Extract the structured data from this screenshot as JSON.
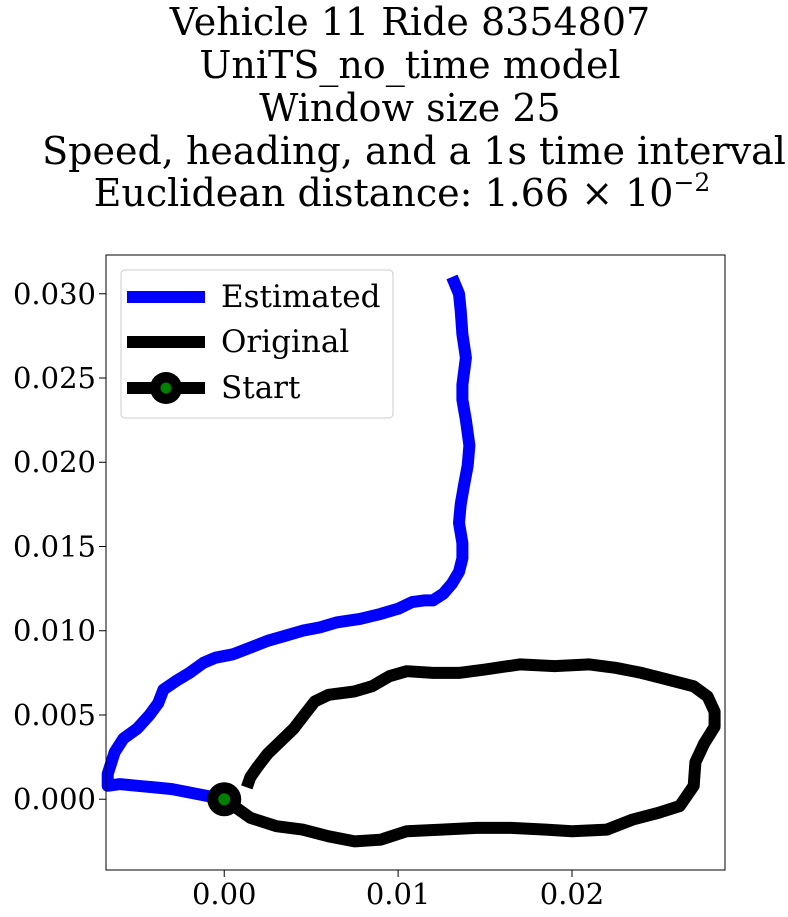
{
  "chart_data": {
    "type": "line",
    "title_lines": [
      "Vehicle 11 Ride 8354807",
      "UniTS_no_time model",
      "Window size 25",
      "Speed, heading, and a 1s time interval",
      "Euclidean distance: 1.66 × 10"
    ],
    "title_exponent": "−2",
    "xlim": [
      -0.0068,
      0.0288
    ],
    "ylim": [
      -0.0042,
      0.0323
    ],
    "xticks": [
      0.0,
      0.01,
      0.02
    ],
    "xtick_labels": [
      "0.00",
      "0.01",
      "0.02"
    ],
    "yticks": [
      0.0,
      0.005,
      0.01,
      0.015,
      0.02,
      0.025,
      0.03
    ],
    "ytick_labels": [
      "0.000",
      "0.005",
      "0.010",
      "0.015",
      "0.020",
      "0.025",
      "0.030"
    ],
    "legend_position": "upper-left",
    "legend": [
      "Estimated",
      "Original",
      "Start"
    ],
    "colors": {
      "estimated": "#0000ff",
      "original": "#000000",
      "start_fill": "#008000",
      "start_edge": "#000000"
    },
    "series": [
      {
        "name": "Estimated",
        "color": "#0000ff",
        "points": [
          [
            0.0,
            0.0
          ],
          [
            -0.001,
            0.0002
          ],
          [
            -0.002,
            0.0004
          ],
          [
            -0.003,
            0.0006
          ],
          [
            -0.004,
            0.0007
          ],
          [
            -0.005,
            0.0008
          ],
          [
            -0.006,
            0.0009
          ],
          [
            -0.0067,
            0.0008
          ],
          [
            -0.0067,
            0.0015
          ],
          [
            -0.0063,
            0.0028
          ],
          [
            -0.0058,
            0.0036
          ],
          [
            -0.005,
            0.0042
          ],
          [
            -0.0043,
            0.005
          ],
          [
            -0.0038,
            0.0057
          ],
          [
            -0.0035,
            0.0065
          ],
          [
            -0.0028,
            0.007
          ],
          [
            -0.002,
            0.0075
          ],
          [
            -0.0012,
            0.0081
          ],
          [
            -0.0005,
            0.0084
          ],
          [
            0.0005,
            0.0086
          ],
          [
            0.0015,
            0.009
          ],
          [
            0.0025,
            0.0094
          ],
          [
            0.0035,
            0.0097
          ],
          [
            0.0045,
            0.01
          ],
          [
            0.0055,
            0.0102
          ],
          [
            0.0065,
            0.0105
          ],
          [
            0.0078,
            0.0107
          ],
          [
            0.009,
            0.011
          ],
          [
            0.01,
            0.0113
          ],
          [
            0.0108,
            0.0117
          ],
          [
            0.0115,
            0.0118
          ],
          [
            0.012,
            0.0118
          ],
          [
            0.0126,
            0.0122
          ],
          [
            0.0131,
            0.0128
          ],
          [
            0.0135,
            0.0135
          ],
          [
            0.0137,
            0.0143
          ],
          [
            0.0137,
            0.0152
          ],
          [
            0.0135,
            0.0164
          ],
          [
            0.0136,
            0.0175
          ],
          [
            0.0138,
            0.0187
          ],
          [
            0.014,
            0.0198
          ],
          [
            0.0141,
            0.021
          ],
          [
            0.0139,
            0.0225
          ],
          [
            0.0137,
            0.0237
          ],
          [
            0.0137,
            0.0246
          ],
          [
            0.0139,
            0.0262
          ],
          [
            0.0137,
            0.0276
          ],
          [
            0.0136,
            0.029
          ],
          [
            0.0135,
            0.03
          ],
          [
            0.0131,
            0.031
          ]
        ]
      },
      {
        "name": "Original",
        "color": "#000000",
        "points": [
          [
            0.0,
            0.0
          ],
          [
            0.0015,
            -0.0011
          ],
          [
            0.003,
            -0.0016
          ],
          [
            0.0045,
            -0.0018
          ],
          [
            0.006,
            -0.0022
          ],
          [
            0.0075,
            -0.0025
          ],
          [
            0.009,
            -0.0024
          ],
          [
            0.0105,
            -0.0019
          ],
          [
            0.0125,
            -0.0018
          ],
          [
            0.0145,
            -0.0017
          ],
          [
            0.0165,
            -0.0017
          ],
          [
            0.0185,
            -0.0018
          ],
          [
            0.02,
            -0.0019
          ],
          [
            0.022,
            -0.0018
          ],
          [
            0.0235,
            -0.0012
          ],
          [
            0.025,
            -0.0008
          ],
          [
            0.0262,
            -0.0004
          ],
          [
            0.027,
            0.0008
          ],
          [
            0.0271,
            0.0022
          ],
          [
            0.0276,
            0.0033
          ],
          [
            0.0282,
            0.0043
          ],
          [
            0.0282,
            0.0052
          ],
          [
            0.0278,
            0.0061
          ],
          [
            0.027,
            0.0067
          ],
          [
            0.0255,
            0.0071
          ],
          [
            0.024,
            0.0075
          ],
          [
            0.0225,
            0.0078
          ],
          [
            0.021,
            0.008
          ],
          [
            0.019,
            0.0079
          ],
          [
            0.017,
            0.008
          ],
          [
            0.015,
            0.0077
          ],
          [
            0.0135,
            0.0075
          ],
          [
            0.012,
            0.0075
          ],
          [
            0.0105,
            0.0076
          ],
          [
            0.0095,
            0.0073
          ],
          [
            0.0085,
            0.0067
          ],
          [
            0.0075,
            0.0064
          ],
          [
            0.006,
            0.0062
          ],
          [
            0.0052,
            0.0058
          ],
          [
            0.0046,
            0.005
          ],
          [
            0.004,
            0.0042
          ],
          [
            0.0033,
            0.0035
          ],
          [
            0.0025,
            0.0027
          ],
          [
            0.0019,
            0.0019
          ],
          [
            0.0015,
            0.0013
          ],
          [
            0.0013,
            0.0007
          ]
        ]
      }
    ],
    "start_point": [
      0.0,
      0.0
    ]
  }
}
